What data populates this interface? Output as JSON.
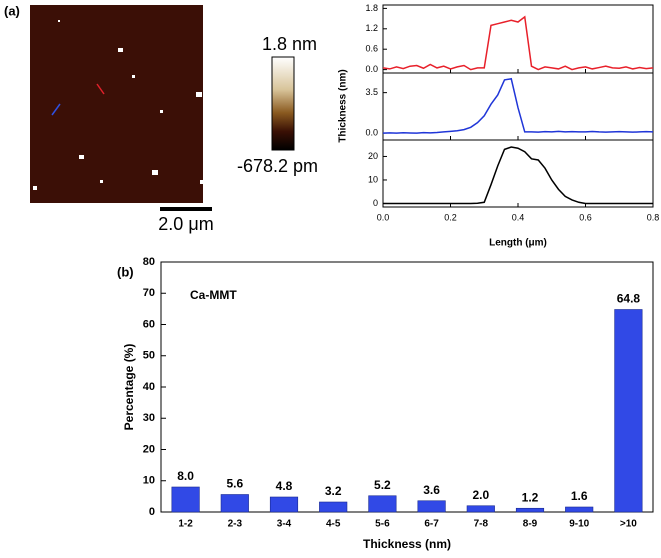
{
  "panel_labels": [
    "(a)",
    "(b)"
  ],
  "afm_image": {
    "colorbar_max": "1.8 nm",
    "colorbar_min": "-678.2 pm",
    "scale_bar": "2.0 μm"
  },
  "chart_data": [
    {
      "type": "line",
      "xlabel": "Length (μm)",
      "ylabel": "Thickness (nm)",
      "xlim": [
        0,
        0.8
      ],
      "xticks": [
        {
          "value": 0,
          "label": "0.0"
        },
        {
          "value": 0.2,
          "label": "0.2"
        },
        {
          "value": 0.4,
          "label": "0.4"
        },
        {
          "value": 0.6,
          "label": "0.6"
        },
        {
          "value": 0.8,
          "label": "0.8"
        }
      ],
      "subplots": [
        {
          "ylim": [
            -0.1,
            1.9
          ],
          "yticks": [
            {
              "value": 0,
              "label": "0.0"
            },
            {
              "value": 0.6,
              "label": "0.6"
            },
            {
              "value": 1.2,
              "label": "1.2"
            },
            {
              "value": 1.8,
              "label": "1.8"
            }
          ],
          "series": [
            {
              "color": "#e8202a",
              "x": [
                0,
                0.02,
                0.04,
                0.06,
                0.08,
                0.1,
                0.12,
                0.14,
                0.16,
                0.18,
                0.2,
                0.22,
                0.24,
                0.26,
                0.28,
                0.3,
                0.32,
                0.34,
                0.36,
                0.38,
                0.4,
                0.42,
                0.44,
                0.46,
                0.48,
                0.5,
                0.52,
                0.54,
                0.56,
                0.58,
                0.6,
                0.62,
                0.64,
                0.66,
                0.68,
                0.7,
                0.72,
                0.74,
                0.76,
                0.78,
                0.8
              ],
              "values": [
                0.05,
                0.02,
                0.08,
                0.03,
                0.1,
                0.12,
                0.04,
                0.15,
                0.05,
                0.1,
                0.02,
                0.08,
                0.12,
                0.0,
                0.05,
                0.05,
                1.3,
                1.35,
                1.4,
                1.45,
                1.4,
                1.55,
                0.1,
                0.0,
                0.08,
                0.05,
                0.02,
                0.1,
                0.0,
                0.05,
                0.08,
                0.02,
                0.06,
                0.1,
                0.05,
                0.04,
                0.08,
                0.02,
                0.06,
                0.03,
                0.05
              ]
            }
          ]
        },
        {
          "ylim": [
            -0.6,
            5.2
          ],
          "yticks": [
            {
              "value": 0,
              "label": "0.0"
            },
            3.5
          ],
          "series": [
            {
              "color": "#2036d8",
              "x": [
                0,
                0.02,
                0.04,
                0.06,
                0.08,
                0.1,
                0.12,
                0.14,
                0.16,
                0.18,
                0.2,
                0.22,
                0.24,
                0.26,
                0.28,
                0.3,
                0.32,
                0.34,
                0.36,
                0.38,
                0.4,
                0.42,
                0.44,
                0.46,
                0.48,
                0.5,
                0.52,
                0.54,
                0.56,
                0.58,
                0.6,
                0.62,
                0.64,
                0.66,
                0.68,
                0.7,
                0.72,
                0.74,
                0.76,
                0.78,
                0.8
              ],
              "values": [
                0.0,
                0.02,
                0.0,
                0.03,
                0.01,
                0.0,
                0.04,
                0.02,
                0.05,
                0.1,
                0.15,
                0.2,
                0.3,
                0.5,
                0.9,
                1.5,
                2.5,
                3.3,
                4.6,
                4.7,
                2.2,
                0.1,
                0.1,
                0.08,
                0.12,
                0.1,
                0.15,
                0.1,
                0.12,
                0.1,
                0.1,
                0.14,
                0.1,
                0.08,
                0.1,
                0.12,
                0.1,
                0.08,
                0.1,
                0.12,
                0.1
              ]
            }
          ]
        },
        {
          "ylim": [
            -1.5,
            27
          ],
          "yticks": [
            0,
            10,
            20
          ],
          "series": [
            {
              "color": "#000000",
              "x": [
                0,
                0.02,
                0.04,
                0.06,
                0.08,
                0.1,
                0.12,
                0.14,
                0.16,
                0.18,
                0.2,
                0.22,
                0.24,
                0.26,
                0.28,
                0.3,
                0.32,
                0.34,
                0.36,
                0.38,
                0.4,
                0.42,
                0.44,
                0.46,
                0.48,
                0.5,
                0.52,
                0.54,
                0.56,
                0.58,
                0.6,
                0.62,
                0.64,
                0.66,
                0.68,
                0.7,
                0.72,
                0.74,
                0.76,
                0.78,
                0.8
              ],
              "values": [
                0,
                0,
                0,
                0,
                0,
                0,
                0,
                0,
                0,
                0,
                0,
                0,
                0,
                0,
                0.1,
                0.5,
                8,
                16,
                23,
                24,
                23.5,
                22,
                19,
                18.5,
                15,
                10,
                6,
                3,
                1.5,
                0.5,
                0,
                0,
                0,
                0,
                0,
                0,
                0,
                0,
                0,
                0,
                0
              ]
            }
          ]
        }
      ]
    },
    {
      "type": "bar",
      "xlabel": "Thickness (nm)",
      "ylabel": "Percentage (%)",
      "annotation": "Ca-MMT",
      "categories": [
        "1-2",
        "2-3",
        "3-4",
        "4-5",
        "5-6",
        "6-7",
        "7-8",
        "8-9",
        "9-10",
        ">10"
      ],
      "values": [
        8.0,
        5.6,
        4.8,
        3.2,
        5.2,
        3.6,
        2.0,
        1.2,
        1.6,
        64.8
      ],
      "value_labels": [
        "8.0",
        "5.6",
        "4.8",
        "3.2",
        "5.2",
        "3.6",
        "2.0",
        "1.2",
        "1.6",
        "64.8"
      ],
      "color": "#3149e6",
      "ylim": [
        0,
        80
      ],
      "yticks": [
        0,
        10,
        20,
        30,
        40,
        50,
        60,
        70,
        80
      ]
    }
  ]
}
